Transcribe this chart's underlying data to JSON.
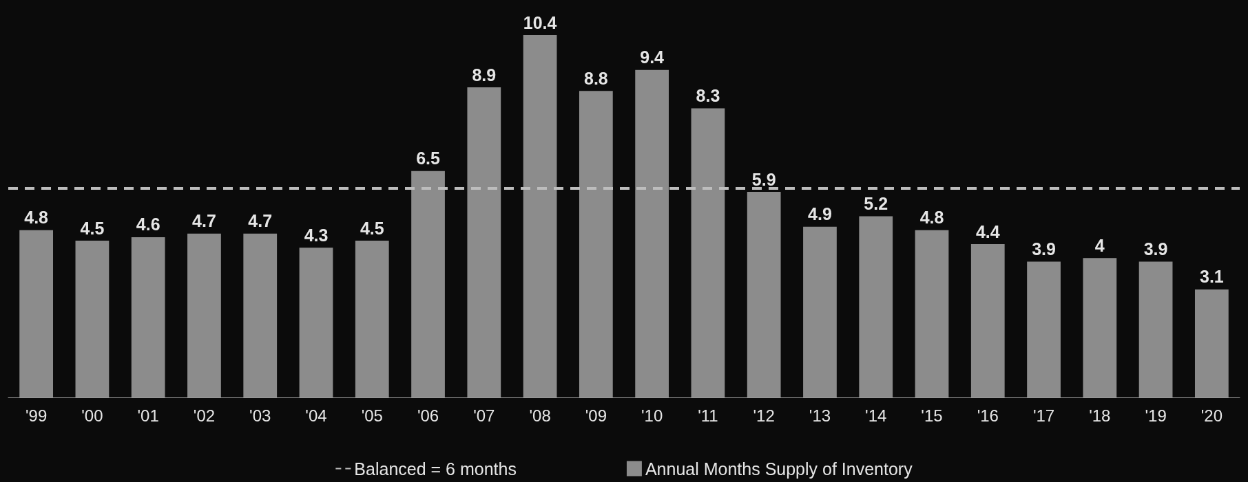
{
  "chart_data": {
    "type": "bar",
    "categories": [
      "'99",
      "'00",
      "'01",
      "'02",
      "'03",
      "'04",
      "'05",
      "'06",
      "'07",
      "'08",
      "'09",
      "'10",
      "'11",
      "'12",
      "'13",
      "'14",
      "'15",
      "'16",
      "'17",
      "'18",
      "'19",
      "'20"
    ],
    "series": [
      {
        "name": "Annual Months Supply of Inventory",
        "color": "#8c8c8c",
        "values": [
          4.8,
          4.5,
          4.6,
          4.7,
          4.7,
          4.3,
          4.5,
          6.5,
          8.9,
          10.4,
          8.8,
          9.4,
          8.3,
          5.9,
          4.9,
          5.2,
          4.8,
          4.4,
          3.9,
          4,
          3.9,
          3.1
        ]
      }
    ],
    "data_labels": true,
    "ref_lines": [
      {
        "axis": "y",
        "value": 6,
        "label": "Balanced = 6 months",
        "color": "#bdbdbd",
        "line_style": "dashed"
      }
    ],
    "legend": "bottom"
  }
}
